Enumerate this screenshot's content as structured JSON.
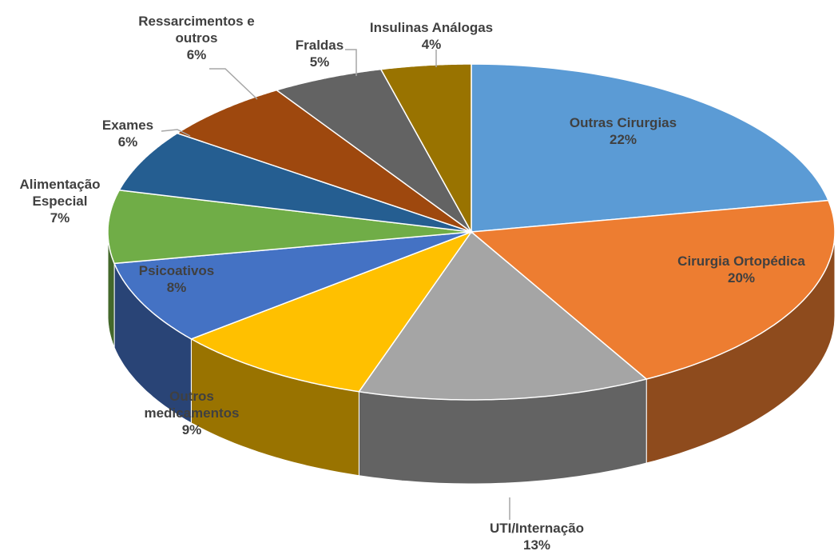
{
  "chart_data": {
    "type": "pie3d",
    "categories": [
      "Outras Cirurgias",
      "Cirurgia Ortopédica",
      "UTI/Internação",
      "Outros medicamentos",
      "Psicoativos",
      "Alimentação Especial",
      "Exames",
      "Ressarcimentos e outros",
      "Fraldas",
      "Insulinas Análogas"
    ],
    "values": [
      22,
      20,
      13,
      9,
      8,
      7,
      6,
      6,
      5,
      4
    ],
    "value_labels": [
      "22%",
      "20%",
      "13%",
      "9%",
      "8%",
      "7%",
      "6%",
      "6%",
      "5%",
      "4%"
    ],
    "colors": [
      "#5b9bd5",
      "#ed7d31",
      "#a5a5a5",
      "#ffc000",
      "#4472c4",
      "#70ad47",
      "#255e91",
      "#9e480e",
      "#636363",
      "#997300"
    ]
  }
}
